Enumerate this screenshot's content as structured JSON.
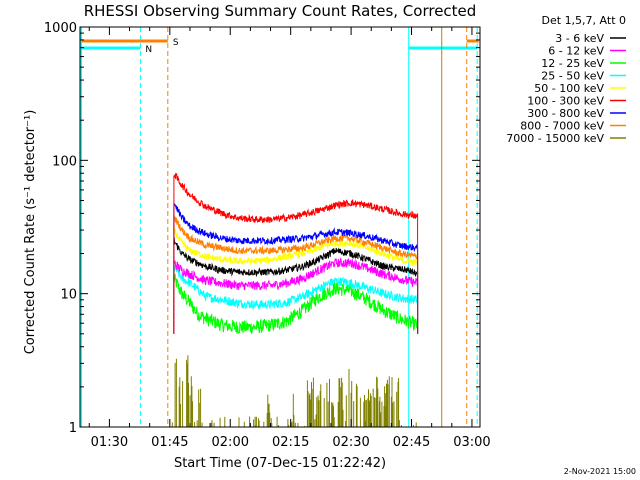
{
  "chart_data": {
    "type": "line",
    "title": "RHESSI Observing Summary Count Rates, Corrected",
    "xlabel": "Start Time (07-Dec-15 01:22:42)",
    "ylabel": "Corrected Count Rate (s⁻¹ detector⁻¹)",
    "x_unit": "minutes after 00:00 UT on 07-Dec-2015",
    "xlim": [
      82.7,
      182.0
    ],
    "ylim": [
      1,
      1000
    ],
    "y_scale": "log",
    "grid": false,
    "legend_position": "outside-right",
    "legend_header": "Det 1,5,7, Att 0",
    "footer": "2-Nov-2021 15:00",
    "x_ticks": [
      {
        "x": 90,
        "label": "01:30"
      },
      {
        "x": 105,
        "label": "01:45"
      },
      {
        "x": 120,
        "label": "02:00"
      },
      {
        "x": 135,
        "label": "02:15"
      },
      {
        "x": 150,
        "label": "02:30"
      },
      {
        "x": 165,
        "label": "02:45"
      },
      {
        "x": 180,
        "label": "03:00"
      }
    ],
    "y_ticks": [
      {
        "y": 1,
        "label": "1"
      },
      {
        "y": 10,
        "label": "10"
      },
      {
        "y": 100,
        "label": "100"
      },
      {
        "y": 1000,
        "label": "1000"
      }
    ],
    "series": [
      {
        "name": "3 - 6 keV",
        "color": "#000000",
        "x": [
          106,
          108,
          110,
          114,
          118,
          122,
          126,
          130,
          134,
          138,
          142,
          146,
          150,
          154,
          158,
          164,
          166.5
        ],
        "y": [
          25,
          20,
          18,
          16,
          15,
          14.5,
          14.5,
          14.5,
          15,
          16,
          18,
          21,
          20,
          18,
          16,
          15,
          14
        ]
      },
      {
        "name": "6 - 12 keV",
        "color": "#ff00ff",
        "x": [
          106,
          108,
          110,
          114,
          118,
          122,
          126,
          130,
          134,
          138,
          142,
          146,
          150,
          154,
          158,
          164,
          166.5
        ],
        "y": [
          17,
          15,
          14,
          12.5,
          12,
          11.5,
          11.5,
          11.5,
          12,
          13,
          15,
          17,
          17,
          15.5,
          14,
          12.5,
          12
        ]
      },
      {
        "name": "12 - 25 keV",
        "color": "#00ff00",
        "x": [
          106,
          108,
          110,
          112,
          114,
          118,
          122,
          126,
          130,
          134,
          138,
          142,
          146,
          150,
          154,
          158,
          162,
          166.5
        ],
        "y": [
          13,
          10,
          8.5,
          7,
          6.5,
          5.8,
          5.6,
          5.6,
          5.8,
          6.2,
          7.5,
          9.5,
          11,
          10.5,
          9,
          7.5,
          6.5,
          5.8
        ]
      },
      {
        "name": "25 - 50 keV",
        "color": "#00ffff",
        "x": [
          106,
          108,
          110,
          114,
          118,
          122,
          126,
          130,
          134,
          138,
          142,
          146,
          150,
          154,
          158,
          162,
          166.5
        ],
        "y": [
          16,
          13,
          12,
          9.5,
          9,
          8.5,
          8.3,
          8.3,
          8.6,
          9.5,
          11,
          12.5,
          12,
          11,
          10,
          9.3,
          9
        ]
      },
      {
        "name": "50 - 100 keV",
        "color": "#ffff00",
        "x": [
          106,
          108,
          110,
          114,
          118,
          122,
          126,
          130,
          134,
          138,
          142,
          146,
          150,
          154,
          158,
          162,
          166.5
        ],
        "y": [
          30,
          24,
          21,
          19,
          18,
          17.5,
          17.5,
          18,
          19,
          20,
          22,
          24,
          24,
          22,
          20,
          18,
          17
        ]
      },
      {
        "name": "100 - 300 keV",
        "color": "#ff0000",
        "x": [
          106,
          108,
          110,
          114,
          118,
          122,
          126,
          130,
          134,
          138,
          142,
          146,
          150,
          154,
          158,
          162,
          166.5
        ],
        "y": [
          80,
          65,
          55,
          45,
          40,
          37,
          36,
          36,
          37,
          39,
          42,
          46,
          48,
          46,
          43,
          40,
          38
        ]
      },
      {
        "name": "300 - 800 keV",
        "color": "#0000ff",
        "x": [
          106,
          108,
          110,
          114,
          118,
          122,
          126,
          130,
          134,
          138,
          142,
          146,
          150,
          154,
          158,
          162,
          166.5
        ],
        "y": [
          48,
          37,
          32,
          28,
          26,
          25,
          25,
          25,
          25.5,
          26,
          27.5,
          29,
          28.5,
          27,
          25,
          23,
          22
        ]
      },
      {
        "name": "800 - 7000 keV",
        "color": "#ff8000",
        "x": [
          106,
          108,
          110,
          114,
          118,
          122,
          126,
          130,
          134,
          138,
          142,
          146,
          150,
          154,
          158,
          162,
          166.5
        ],
        "y": [
          38,
          30,
          26,
          23,
          22,
          21,
          21,
          21,
          21.5,
          22,
          24,
          26,
          26,
          24,
          22,
          20,
          19
        ]
      },
      {
        "name": "7000 - 15000 keV",
        "color": "#808000",
        "x": [
          105.3,
          106,
          107,
          108,
          109,
          110,
          111,
          112,
          113,
          114,
          115,
          116,
          117,
          118,
          119,
          120,
          121,
          122,
          123,
          124,
          125,
          126,
          127,
          128,
          129,
          130,
          131,
          132,
          133,
          134,
          135,
          136,
          137,
          138,
          139,
          140,
          141,
          142,
          143,
          144,
          145,
          146,
          147,
          148,
          149,
          150,
          151,
          152,
          153,
          154,
          155,
          156,
          157,
          158,
          159,
          160,
          161,
          162,
          163,
          164,
          165,
          166
        ],
        "y": [
          1,
          3,
          2,
          2.3,
          3,
          2,
          1,
          2,
          1,
          1,
          1,
          1,
          1,
          1,
          1,
          1,
          1,
          1,
          1,
          1,
          1,
          1,
          1,
          1,
          1.5,
          1,
          1,
          1,
          1,
          1,
          1.5,
          1,
          1,
          1,
          2,
          2,
          1.5,
          2,
          2,
          2,
          1.5,
          2,
          2,
          1.5,
          2.5,
          2,
          2,
          2,
          1.5,
          2,
          2,
          2,
          1.5,
          2,
          2,
          2,
          2,
          1,
          1,
          1,
          1,
          1
        ]
      }
    ],
    "annotations": [
      {
        "label": "S",
        "color": "#ff8000",
        "x_start": 82.7,
        "x_end": 104.5
      },
      {
        "label": "N",
        "color": "#00ffff",
        "x_start": 82.7,
        "x_end": 97.7
      }
    ],
    "night_boundaries": [
      97.7,
      164.3,
      181.3
    ],
    "saa_boundaries": [
      104.5,
      172.5,
      178.7
    ]
  }
}
